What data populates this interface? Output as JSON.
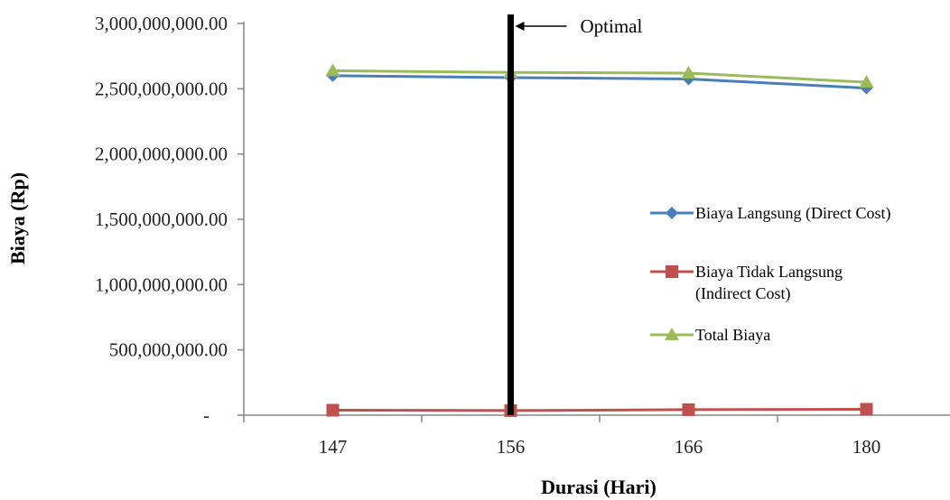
{
  "chart_data": {
    "type": "line",
    "categories": [
      "147",
      "156",
      "166",
      "180"
    ],
    "series": [
      {
        "name": "Biaya Langsung (Direct Cost)",
        "values": [
          2600000000,
          2585000000,
          2575000000,
          2505000000
        ],
        "color": "#4A7EBB",
        "marker": "diamond"
      },
      {
        "name": "Biaya Tidak Langsung (Indirect Cost)",
        "values": [
          38000000,
          35000000,
          42000000,
          45000000
        ],
        "color": "#C0504D",
        "marker": "square"
      },
      {
        "name": "Total Biaya",
        "values": [
          2638000000,
          2625000000,
          2620000000,
          2550000000
        ],
        "color": "#9BBB59",
        "marker": "triangle"
      }
    ],
    "xlabel": "Durasi (Hari)",
    "ylabel": "Biaya (Rp)",
    "ylim": [
      0,
      3000000000
    ],
    "yticks": [
      "-",
      "500,000,000.00",
      "1,000,000,000.00",
      "1,500,000,000.00",
      "2,000,000,000.00",
      "2,500,000,000.00",
      "3,000,000,000.00"
    ],
    "grid": false,
    "legend_position": "right",
    "annotation": {
      "text": "Optimal",
      "at_category": "156"
    }
  }
}
